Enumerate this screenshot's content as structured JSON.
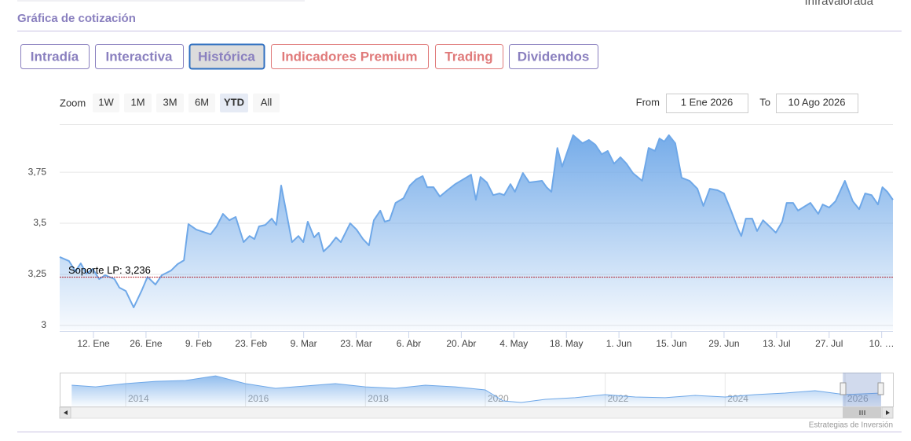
{
  "header": {
    "title": "Gráfica de cotización",
    "fragment": "Infravalorada"
  },
  "tabs": [
    "Intradía",
    "Interactiva",
    "Histórica",
    "Indicadores Premium",
    "Trading",
    "Dividendos"
  ],
  "range_selector": {
    "zoom_label": "Zoom",
    "buttons": [
      "1W",
      "1M",
      "3M",
      "6M",
      "YTD",
      "All"
    ],
    "selected": "YTD",
    "from_label": "From",
    "from": "1 Ene 2026",
    "to_label": "To",
    "to": "10 Ago 2026"
  },
  "chart_data": {
    "type": "area",
    "xlim": [
      2,
      224
    ],
    "ylim": [
      2.977,
      3.985
    ],
    "xticks": [
      {
        "value": 11,
        "label": "12. Ene"
      },
      {
        "value": 25,
        "label": "26. Ene"
      },
      {
        "value": 39,
        "label": "9. Feb"
      },
      {
        "value": 53,
        "label": "23. Feb"
      },
      {
        "value": 67,
        "label": "9. Mar"
      },
      {
        "value": 81,
        "label": "23. Mar"
      },
      {
        "value": 95,
        "label": "6. Abr"
      },
      {
        "value": 109,
        "label": "20. Abr"
      },
      {
        "value": 123,
        "label": "4. May"
      },
      {
        "value": 137,
        "label": "18. May"
      },
      {
        "value": 151,
        "label": "1. Jun"
      },
      {
        "value": 165,
        "label": "15. Jun"
      },
      {
        "value": 179,
        "label": "29. Jun"
      },
      {
        "value": 193,
        "label": "13. Jul"
      },
      {
        "value": 207,
        "label": "27. Jul"
      },
      {
        "value": 221,
        "label": "10. …"
      }
    ],
    "yticks": [
      3,
      {
        "value": 3.25,
        "label": "3,25"
      },
      {
        "value": 3.5,
        "label": "3,5"
      },
      {
        "value": 3.75,
        "label": "3,75"
      }
    ],
    "grid": true,
    "series": [
      {
        "color": "#6fa8e8",
        "x": [
          2,
          4.5,
          6.2,
          7.6,
          9.1,
          10.8,
          12.5,
          14.1,
          16.6,
          17.9,
          19.6,
          21.7,
          23.8,
          25.4,
          27.5,
          29.2,
          31.7,
          33.4,
          35.1,
          36.3,
          38.4,
          42.2,
          43.8,
          45.5,
          47.2,
          48.9,
          51,
          52.6,
          53.9,
          55.1,
          56.8,
          58.5,
          59.7,
          61,
          62.3,
          63.9,
          65.6,
          66.9,
          68.1,
          69.8,
          71,
          72.3,
          74,
          75.6,
          76.9,
          79.4,
          81.1,
          82.8,
          84.4,
          85.7,
          87.4,
          88.6,
          89.9,
          91.5,
          93.6,
          95.3,
          97,
          98.7,
          99.9,
          101.6,
          103.3,
          105.3,
          107.4,
          109.5,
          111.6,
          112.9,
          114.1,
          115.8,
          117.5,
          119.2,
          120.4,
          122.1,
          123.3,
          125.4,
          127.1,
          130.5,
          131.7,
          133,
          134.6,
          135.9,
          137.6,
          138.8,
          141.3,
          143,
          144.7,
          146.4,
          148,
          149.7,
          151.4,
          153,
          154.7,
          157.2,
          158.9,
          160.6,
          161.8,
          163.1,
          164.3,
          166,
          167.7,
          169.8,
          171.9,
          173.5,
          175.2,
          177.3,
          179,
          180.7,
          182.8,
          183.6,
          184.8,
          186.5,
          187.8,
          189.4,
          191.1,
          192.8,
          194.5,
          195.7,
          197.4,
          198.7,
          200.7,
          202,
          204.1,
          205.3,
          207,
          208.7,
          211.2,
          213.3,
          215,
          216.6,
          218.3,
          220,
          221.2,
          222.5,
          224
        ],
        "values": [
          3.335,
          3.315,
          3.265,
          3.304,
          3.254,
          3.277,
          3.227,
          3.246,
          3.227,
          3.185,
          3.169,
          3.088,
          3.169,
          3.238,
          3.2,
          3.246,
          3.269,
          3.3,
          3.319,
          3.496,
          3.469,
          3.446,
          3.485,
          3.546,
          3.515,
          3.531,
          3.408,
          3.438,
          3.423,
          3.485,
          3.492,
          3.523,
          3.492,
          3.685,
          3.562,
          3.408,
          3.438,
          3.408,
          3.508,
          3.431,
          3.454,
          3.362,
          3.392,
          3.431,
          3.408,
          3.5,
          3.469,
          3.423,
          3.392,
          3.515,
          3.562,
          3.508,
          3.515,
          3.6,
          3.623,
          3.685,
          3.715,
          3.731,
          3.677,
          3.677,
          3.631,
          3.662,
          3.692,
          3.715,
          3.738,
          3.615,
          3.727,
          3.7,
          3.638,
          3.646,
          3.638,
          3.692,
          3.654,
          3.746,
          3.7,
          3.708,
          3.677,
          3.654,
          3.869,
          3.777,
          3.869,
          3.931,
          3.892,
          3.908,
          3.885,
          3.838,
          3.854,
          3.792,
          3.823,
          3.792,
          3.746,
          3.708,
          3.869,
          3.854,
          3.915,
          3.9,
          3.931,
          3.892,
          3.723,
          3.708,
          3.669,
          3.585,
          3.669,
          3.662,
          3.646,
          3.569,
          3.469,
          3.438,
          3.523,
          3.523,
          3.462,
          3.515,
          3.485,
          3.454,
          3.508,
          3.6,
          3.6,
          3.562,
          3.585,
          3.6,
          3.546,
          3.592,
          3.577,
          3.608,
          3.708,
          3.608,
          3.569,
          3.646,
          3.638,
          3.592,
          3.677,
          3.654,
          3.615
        ]
      }
    ],
    "support": {
      "value": 3.236,
      "label": "Soporte LP: 3,236",
      "color": "#b0202a"
    },
    "navigator": {
      "xlim": [
        2012.9,
        2026.8
      ],
      "ylim": [
        2,
        5.5
      ],
      "xticks": [
        2014,
        2016,
        2018,
        2020,
        2022,
        2024,
        2026
      ],
      "x": [
        2013.1,
        2013.5,
        2014,
        2014.5,
        2015,
        2015.5,
        2016,
        2016.5,
        2017,
        2017.5,
        2018,
        2018.5,
        2019,
        2019.5,
        2020,
        2020.3,
        2020.6,
        2021,
        2021.5,
        2022,
        2022.5,
        2023,
        2023.5,
        2024,
        2024.5,
        2025,
        2025.5,
        2026,
        2026.6
      ],
      "values": [
        4.2,
        4.03,
        4.36,
        4.6,
        4.69,
        5.17,
        4.36,
        3.87,
        4.12,
        4.36,
        4.03,
        3.87,
        4.2,
        4.03,
        3.71,
        2.57,
        2.41,
        2.73,
        2.9,
        3.22,
        2.98,
        2.9,
        3.14,
        2.98,
        3.22,
        3.38,
        3.63,
        3.22,
        3.38
      ]
    },
    "credits": "Estrategias de Inversión"
  }
}
